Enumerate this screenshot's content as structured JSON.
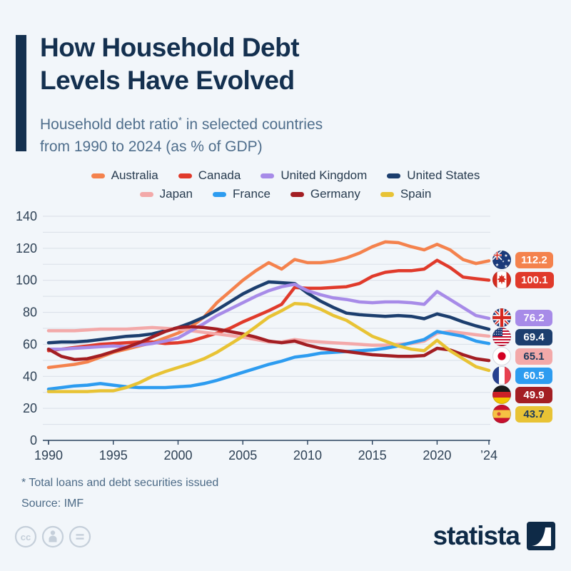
{
  "header": {
    "title_line1": "How Household Debt",
    "title_line2": "Levels Have Evolved",
    "subtitle_part1": "Household debt ratio",
    "subtitle_star": "*",
    "subtitle_part2": " in selected countries",
    "subtitle_line2": "from 1990 to 2024 (as % of GDP)"
  },
  "footnote": {
    "line1": "* Total loans and debt securities issued",
    "line2": "Source: IMF"
  },
  "branding": {
    "logo_text": "statista",
    "cc_glyph": "cc"
  },
  "colors": {
    "background": "#f2f6fa",
    "title_navy": "#14304f",
    "subtitle_gray": "#4f6e8c",
    "gridline": "#d9dfe7",
    "axis_line": "#29415c",
    "tick_text": "#2f4256"
  },
  "chart_data": {
    "type": "line",
    "title": "How Household Debt Levels Have Evolved",
    "subtitle": "Household debt ratio* in selected countries from 1990 to 2024 (as % of GDP)",
    "xlabel": "",
    "ylabel": "",
    "xlim": [
      1990,
      2024
    ],
    "ylim": [
      0,
      140
    ],
    "y_ticks": [
      0,
      20,
      40,
      60,
      80,
      100,
      120,
      140
    ],
    "grid_step": 10,
    "legend_position": "top",
    "x": [
      1990,
      1991,
      1992,
      1993,
      1994,
      1995,
      1996,
      1997,
      1998,
      1999,
      2000,
      2001,
      2002,
      2003,
      2004,
      2005,
      2006,
      2007,
      2008,
      2009,
      2010,
      2011,
      2012,
      2013,
      2014,
      2015,
      2016,
      2017,
      2018,
      2019,
      2020,
      2021,
      2022,
      2023,
      2024
    ],
    "x_ticks": [
      {
        "year": 1990,
        "label": "1990"
      },
      {
        "year": 1995,
        "label": "1995"
      },
      {
        "year": 2000,
        "label": "2000"
      },
      {
        "year": 2005,
        "label": "2005"
      },
      {
        "year": 2010,
        "label": "2010"
      },
      {
        "year": 2015,
        "label": "2015"
      },
      {
        "year": 2020,
        "label": "2020"
      },
      {
        "year": 2024,
        "label": "’24"
      }
    ],
    "legend_rows": [
      [
        "Australia",
        "Canada",
        "United Kingdom",
        "United States"
      ],
      [
        "Japan",
        "France",
        "Germany",
        "Spain"
      ]
    ],
    "series": [
      {
        "name": "Australia",
        "color": "#F4824D",
        "flag": "au",
        "end_label": "112.2",
        "badge_text_dark": false,
        "values": [
          45.5,
          46.5,
          47.5,
          49,
          52,
          55,
          57,
          59,
          61,
          64,
          67,
          71,
          77,
          86,
          93,
          100,
          106,
          111,
          107,
          113,
          111,
          111,
          112,
          114,
          117,
          121,
          124,
          123.5,
          121,
          119,
          122.5,
          119,
          113,
          110.5,
          112.2
        ]
      },
      {
        "name": "Canada",
        "color": "#E03A2B",
        "flag": "ca",
        "end_label": "100.1",
        "badge_text_dark": false,
        "values": [
          56,
          57,
          58,
          59,
          60,
          60.5,
          61,
          61.5,
          61.5,
          60.5,
          61,
          62,
          64.5,
          67,
          70,
          74,
          77.5,
          81,
          85,
          95.5,
          95,
          95,
          95.5,
          96,
          98,
          102.5,
          105,
          106,
          106,
          107,
          112.5,
          108,
          102,
          101,
          100.1
        ]
      },
      {
        "name": "United Kingdom",
        "color": "#A78BE8",
        "flag": "gb",
        "end_label": "76.2",
        "badge_text_dark": false,
        "values": [
          57,
          57,
          57.5,
          58,
          58.5,
          59,
          58.5,
          59.5,
          60.5,
          62,
          64,
          68.5,
          73,
          78,
          82,
          86,
          90,
          93.5,
          96,
          97.5,
          93.5,
          91,
          89,
          88,
          86.5,
          86,
          86.5,
          86.5,
          86,
          85,
          93,
          88,
          83,
          78,
          76.2
        ]
      },
      {
        "name": "United States",
        "color": "#1C3E6E",
        "flag": "us",
        "end_label": "69.4",
        "badge_text_dark": false,
        "values": [
          61,
          61.5,
          61.5,
          62,
          63,
          64,
          65,
          65.5,
          66.5,
          68.5,
          70.5,
          73.5,
          77,
          81.5,
          86.5,
          91.5,
          95.5,
          99,
          98.5,
          98,
          92,
          87,
          83,
          79.5,
          78.5,
          78,
          77.5,
          78,
          77.5,
          76,
          79,
          77,
          74,
          71.5,
          69.4
        ]
      },
      {
        "name": "Japan",
        "color": "#F3A9A9",
        "flag": "jp",
        "end_label": "65.1",
        "badge_text_dark": true,
        "values": [
          68.5,
          68.5,
          68.5,
          69,
          69.5,
          69.5,
          69.5,
          70,
          70.5,
          70,
          69.5,
          68.5,
          67.5,
          66.5,
          65.5,
          64.5,
          63,
          61.5,
          61.5,
          63,
          62,
          61.5,
          61,
          60.5,
          60,
          59.5,
          59.5,
          60,
          60.5,
          62,
          67,
          68,
          67,
          66,
          65.1
        ]
      },
      {
        "name": "France",
        "color": "#2D9CF0",
        "flag": "fr",
        "end_label": "60.5",
        "badge_text_dark": false,
        "values": [
          32,
          33,
          34,
          34.5,
          35.5,
          34.5,
          33.5,
          33,
          33,
          33,
          33.5,
          34,
          35.5,
          37.5,
          40,
          42.5,
          45,
          47.5,
          49.5,
          52,
          53,
          54.5,
          55,
          55.5,
          56,
          56.5,
          57.5,
          59,
          61,
          63,
          68,
          66.5,
          65,
          62,
          60.5
        ]
      },
      {
        "name": "Germany",
        "color": "#A31E23",
        "flag": "de",
        "end_label": "49.9",
        "badge_text_dark": false,
        "values": [
          57,
          52.5,
          50.5,
          51,
          53,
          55.5,
          58,
          61,
          64.5,
          68,
          70.5,
          71,
          70.5,
          69.5,
          68,
          66.5,
          64.5,
          62,
          61,
          62,
          59.5,
          57.5,
          56.5,
          55.5,
          54.5,
          53.5,
          53,
          52.5,
          52.5,
          53,
          57.5,
          56.5,
          53.5,
          51,
          49.9
        ]
      },
      {
        "name": "Spain",
        "color": "#E8C335",
        "flag": "es",
        "end_label": "43.7",
        "badge_text_dark": true,
        "values": [
          30.5,
          30.5,
          30.5,
          30.5,
          31,
          31,
          33,
          36,
          40,
          43,
          45.5,
          48,
          51,
          55,
          60,
          65,
          71,
          77,
          81,
          85.5,
          85,
          82,
          78,
          75,
          70,
          65,
          62,
          59,
          57,
          56,
          62.5,
          56,
          51,
          46,
          43.7
        ]
      }
    ]
  }
}
